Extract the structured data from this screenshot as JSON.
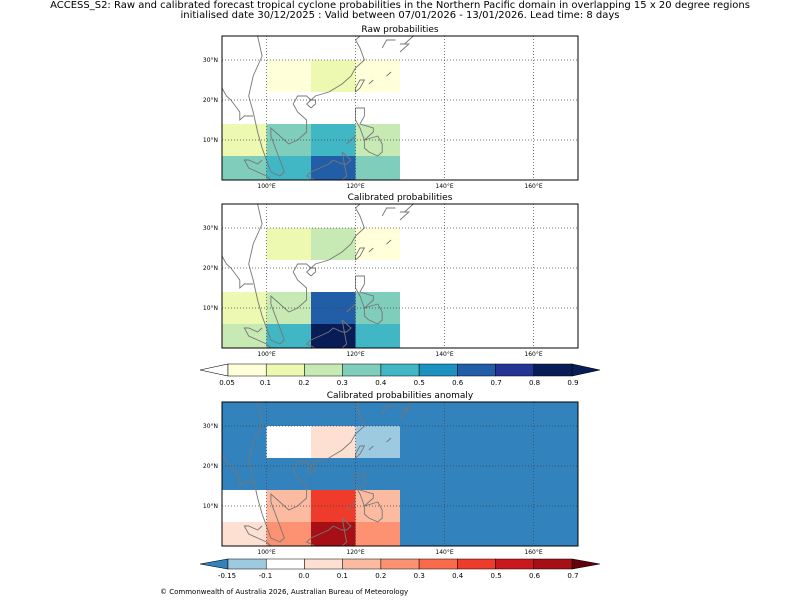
{
  "header": {
    "line1": "ACCESS_S2: Raw and calibrated forecast tropical cyclone probabilities in the Northern Pacific domain in overlapping 15 x 20 degree regions",
    "line2": "initialised date 30/12/2025 :  Valid between 07/01/2026 - 13/01/2026. Lead time: 8 days"
  },
  "footer": "© Commonwealth of Australia 2026, Australian Bureau of Meteorology",
  "chart_data": [
    {
      "type": "heatmap",
      "title": "Raw probabilities",
      "lon_range": [
        90,
        170
      ],
      "lat_range": [
        0,
        36
      ],
      "lon_ticks": [
        100,
        120,
        140,
        160
      ],
      "lon_tick_labels": [
        "100°E",
        "120°E",
        "140°E",
        "160°E"
      ],
      "lat_ticks": [
        10,
        20,
        30
      ],
      "lat_tick_labels": [
        "10°N",
        "20°N",
        "30°N"
      ],
      "grid": true,
      "cells": [
        {
          "lon": [
            100,
            110
          ],
          "lat": [
            22,
            30
          ],
          "value": 0.06
        },
        {
          "lon": [
            110,
            120
          ],
          "lat": [
            22,
            30
          ],
          "value": 0.15
        },
        {
          "lon": [
            120,
            130
          ],
          "lat": [
            22,
            30
          ],
          "value": 0.06
        },
        {
          "lon": [
            90,
            100
          ],
          "lat": [
            6,
            14
          ],
          "value": 0.12
        },
        {
          "lon": [
            100,
            110
          ],
          "lat": [
            6,
            14
          ],
          "value": 0.35
        },
        {
          "lon": [
            110,
            120
          ],
          "lat": [
            6,
            14
          ],
          "value": 0.45
        },
        {
          "lon": [
            120,
            130
          ],
          "lat": [
            6,
            14
          ],
          "value": 0.25
        },
        {
          "lon": [
            90,
            100
          ],
          "lat": [
            0,
            6
          ],
          "value": 0.32
        },
        {
          "lon": [
            100,
            110
          ],
          "lat": [
            0,
            6
          ],
          "value": 0.45
        },
        {
          "lon": [
            110,
            120
          ],
          "lat": [
            0,
            6
          ],
          "value": 0.68
        },
        {
          "lon": [
            120,
            130
          ],
          "lat": [
            0,
            6
          ],
          "value": 0.32
        }
      ]
    },
    {
      "type": "heatmap",
      "title": "Calibrated probabilities",
      "lon_range": [
        90,
        170
      ],
      "lat_range": [
        0,
        36
      ],
      "lon_ticks": [
        100,
        120,
        140,
        160
      ],
      "lon_tick_labels": [
        "100°E",
        "120°E",
        "140°E",
        "160°E"
      ],
      "lat_ticks": [
        10,
        20,
        30
      ],
      "lat_tick_labels": [
        "10°N",
        "20°N",
        "30°N"
      ],
      "grid": true,
      "cells": [
        {
          "lon": [
            100,
            110
          ],
          "lat": [
            22,
            30
          ],
          "value": 0.15
        },
        {
          "lon": [
            110,
            120
          ],
          "lat": [
            22,
            30
          ],
          "value": 0.25
        },
        {
          "lon": [
            120,
            130
          ],
          "lat": [
            22,
            30
          ],
          "value": 0.06
        },
        {
          "lon": [
            90,
            100
          ],
          "lat": [
            6,
            14
          ],
          "value": 0.12
        },
        {
          "lon": [
            100,
            110
          ],
          "lat": [
            6,
            14
          ],
          "value": 0.25
        },
        {
          "lon": [
            110,
            120
          ],
          "lat": [
            6,
            14
          ],
          "value": 0.65
        },
        {
          "lon": [
            120,
            130
          ],
          "lat": [
            6,
            14
          ],
          "value": 0.35
        },
        {
          "lon": [
            90,
            100
          ],
          "lat": [
            0,
            6
          ],
          "value": 0.25
        },
        {
          "lon": [
            100,
            110
          ],
          "lat": [
            0,
            6
          ],
          "value": 0.45
        },
        {
          "lon": [
            110,
            120
          ],
          "lat": [
            0,
            6
          ],
          "value": 0.95
        },
        {
          "lon": [
            120,
            130
          ],
          "lat": [
            0,
            6
          ],
          "value": 0.45
        }
      ]
    },
    {
      "type": "heatmap",
      "title": "Calibrated probabilities anomaly",
      "lon_range": [
        90,
        170
      ],
      "lat_range": [
        0,
        36
      ],
      "lon_ticks": [
        100,
        120,
        140,
        160
      ],
      "lon_tick_labels": [
        "100°E",
        "120°E",
        "140°E",
        "160°E"
      ],
      "lat_ticks": [
        10,
        20,
        30
      ],
      "lat_tick_labels": [
        "10°N",
        "20°N",
        "30°N"
      ],
      "grid": true,
      "background_value": -0.2,
      "cells": [
        {
          "lon": [
            100,
            110
          ],
          "lat": [
            22,
            30
          ],
          "value": -0.05
        },
        {
          "lon": [
            110,
            120
          ],
          "lat": [
            22,
            30
          ],
          "value": 0.05
        },
        {
          "lon": [
            120,
            130
          ],
          "lat": [
            22,
            30
          ],
          "value": -0.12
        },
        {
          "lon": [
            90,
            100
          ],
          "lat": [
            6,
            14
          ],
          "value": -0.05
        },
        {
          "lon": [
            100,
            110
          ],
          "lat": [
            6,
            14
          ],
          "value": 0.15
        },
        {
          "lon": [
            110,
            120
          ],
          "lat": [
            6,
            14
          ],
          "value": 0.45
        },
        {
          "lon": [
            120,
            130
          ],
          "lat": [
            6,
            14
          ],
          "value": 0.15
        },
        {
          "lon": [
            90,
            100
          ],
          "lat": [
            0,
            6
          ],
          "value": 0.05
        },
        {
          "lon": [
            100,
            110
          ],
          "lat": [
            0,
            6
          ],
          "value": 0.25
        },
        {
          "lon": [
            110,
            120
          ],
          "lat": [
            0,
            6
          ],
          "value": 0.65
        },
        {
          "lon": [
            120,
            130
          ],
          "lat": [
            0,
            6
          ],
          "value": 0.25
        }
      ]
    }
  ],
  "colorbars": [
    {
      "name": "probability",
      "ticks": [
        "0.05",
        "0.1",
        "0.2",
        "0.3",
        "0.4",
        "0.5",
        "0.6",
        "0.7",
        "0.8",
        "0.9"
      ],
      "bounds": [
        0.05,
        0.1,
        0.2,
        0.3,
        0.4,
        0.5,
        0.6,
        0.7,
        0.8,
        0.9
      ],
      "colors": [
        "#ffffd9",
        "#edf8b1",
        "#c7e9b4",
        "#7fcdbb",
        "#41b6c4",
        "#1d91c0",
        "#225ea8",
        "#253494",
        "#081d58"
      ],
      "under_color": "#ffffff",
      "over_color": "#081d58"
    },
    {
      "name": "anomaly",
      "ticks": [
        "-0.15",
        "-0.1",
        "0.0",
        "0.1",
        "0.2",
        "0.3",
        "0.4",
        "0.5",
        "0.6",
        "0.7"
      ],
      "bounds": [
        -0.15,
        -0.1,
        0.0,
        0.1,
        0.2,
        0.3,
        0.4,
        0.5,
        0.6,
        0.7
      ],
      "colors": [
        "#9ecae1",
        "#ffffff",
        "#fee0d2",
        "#fcbba1",
        "#fc9272",
        "#fb6a4a",
        "#ef3b2c",
        "#cb181d",
        "#a50f15"
      ],
      "under_color": "#3182bd",
      "over_color": "#67000d"
    }
  ]
}
